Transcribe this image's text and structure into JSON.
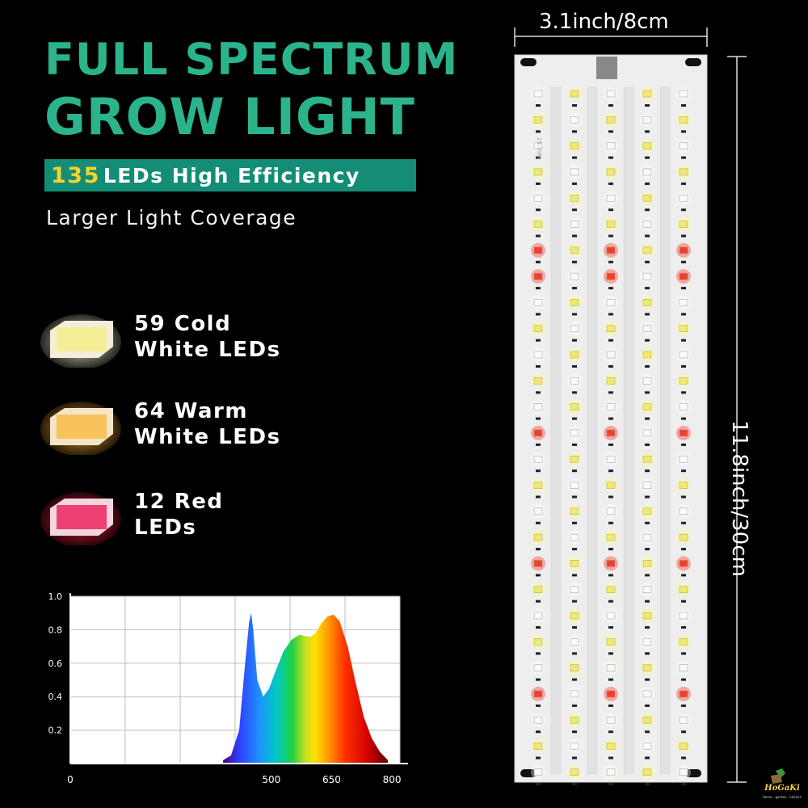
{
  "header": {
    "title_line1": "FULL SPECTRUM",
    "title_line2": "GROW LIGHT",
    "banner_number": "135",
    "banner_text": "LEDs High Efficiency",
    "subtitle": "Larger Light Coverage",
    "title_color": "#2bb38c",
    "banner_color": "#148d76",
    "number_color": "#f4d42c"
  },
  "led_legend": [
    {
      "line1": "59 Cold",
      "line2": "White LEDs",
      "chip_color": "#f6f2b0",
      "glow_color": "#ffffcc"
    },
    {
      "line1": "64 Warm",
      "line2": "White LEDs",
      "chip_color": "#f7c860",
      "glow_color": "#ffb030"
    },
    {
      "line1": "12 Red",
      "line2": "LEDs",
      "chip_color": "#f04a78",
      "glow_color": "#ff2040"
    }
  ],
  "panel": {
    "width_label": "3.1inch/8cm",
    "height_label": "11.8inch/30cm",
    "silkscreen": "25-79M"
  },
  "logo": {
    "text": "HoGaKi",
    "tagline": "Home · garden · kitchen"
  },
  "chart_data": {
    "type": "area",
    "title": "",
    "xlabel": "",
    "ylabel": "",
    "xlim": [
      0,
      820
    ],
    "ylim": [
      0,
      1.0
    ],
    "x_ticks": [
      "0",
      "500",
      "650",
      "800"
    ],
    "y_ticks": [
      "1.0",
      "0.8",
      "0.6",
      "0.4",
      "0.2"
    ],
    "grid": true,
    "fill": "visible spectrum gradient (violet to red)",
    "x": [
      380,
      400,
      420,
      435,
      445,
      450,
      455,
      465,
      480,
      495,
      510,
      530,
      550,
      570,
      590,
      600,
      610,
      625,
      640,
      655,
      670,
      690,
      710,
      730,
      750,
      770,
      790
    ],
    "y": [
      0.02,
      0.05,
      0.2,
      0.6,
      0.85,
      0.9,
      0.8,
      0.5,
      0.4,
      0.45,
      0.55,
      0.67,
      0.74,
      0.77,
      0.76,
      0.76,
      0.78,
      0.84,
      0.88,
      0.89,
      0.85,
      0.7,
      0.48,
      0.28,
      0.15,
      0.07,
      0.02
    ]
  }
}
